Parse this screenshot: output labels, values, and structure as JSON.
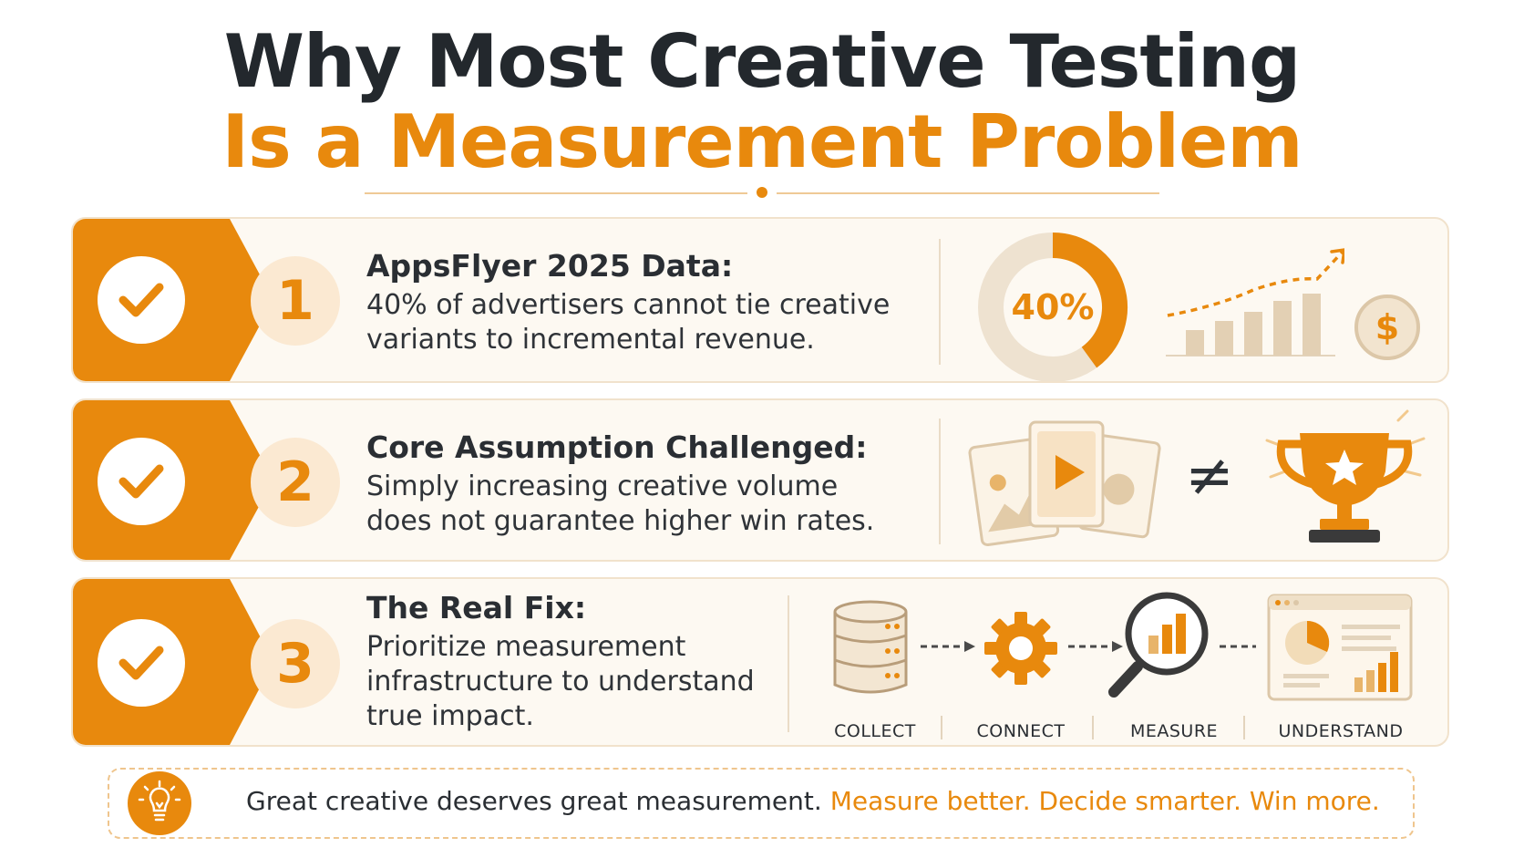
{
  "header": {
    "title_line1": "Why Most Creative Testing",
    "title_line2": "Is a Measurement Problem"
  },
  "rows": [
    {
      "number": "1",
      "heading": "AppsFlyer 2025 Data:",
      "body": "40% of advertisers cannot tie creative variants to incremental revenue.",
      "donut_label": "40%",
      "donut_fraction": 0.4,
      "currency_icon_label": "$"
    },
    {
      "number": "2",
      "heading": "Core Assumption Challenged:",
      "body": "Simply increasing creative volume does not guarantee higher win rates.",
      "not_equal_symbol": "≠"
    },
    {
      "number": "3",
      "heading": "The Real Fix:",
      "body": "Prioritize measurement infrastructure to understand true impact.",
      "steps": [
        "COLLECT",
        "CONNECT",
        "MEASURE",
        "UNDERSTAND"
      ]
    }
  ],
  "footer": {
    "text_dark": "Great creative deserves great measurement.",
    "text_accent": "Measure better. Decide smarter. Win more."
  },
  "colors": {
    "accent": "#e8890d",
    "dark_text": "#23282d",
    "tan": "#dcc7a8",
    "card_bg": "#fdf9f2"
  },
  "icons": [
    "check-icon",
    "donut-chart-icon",
    "bar-growth-chart-icon",
    "dollar-coin-icon",
    "image-card-icon",
    "play-card-icon",
    "trophy-icon",
    "database-icon",
    "gear-icon",
    "magnifier-chart-icon",
    "dashboard-icon",
    "lightbulb-icon"
  ]
}
